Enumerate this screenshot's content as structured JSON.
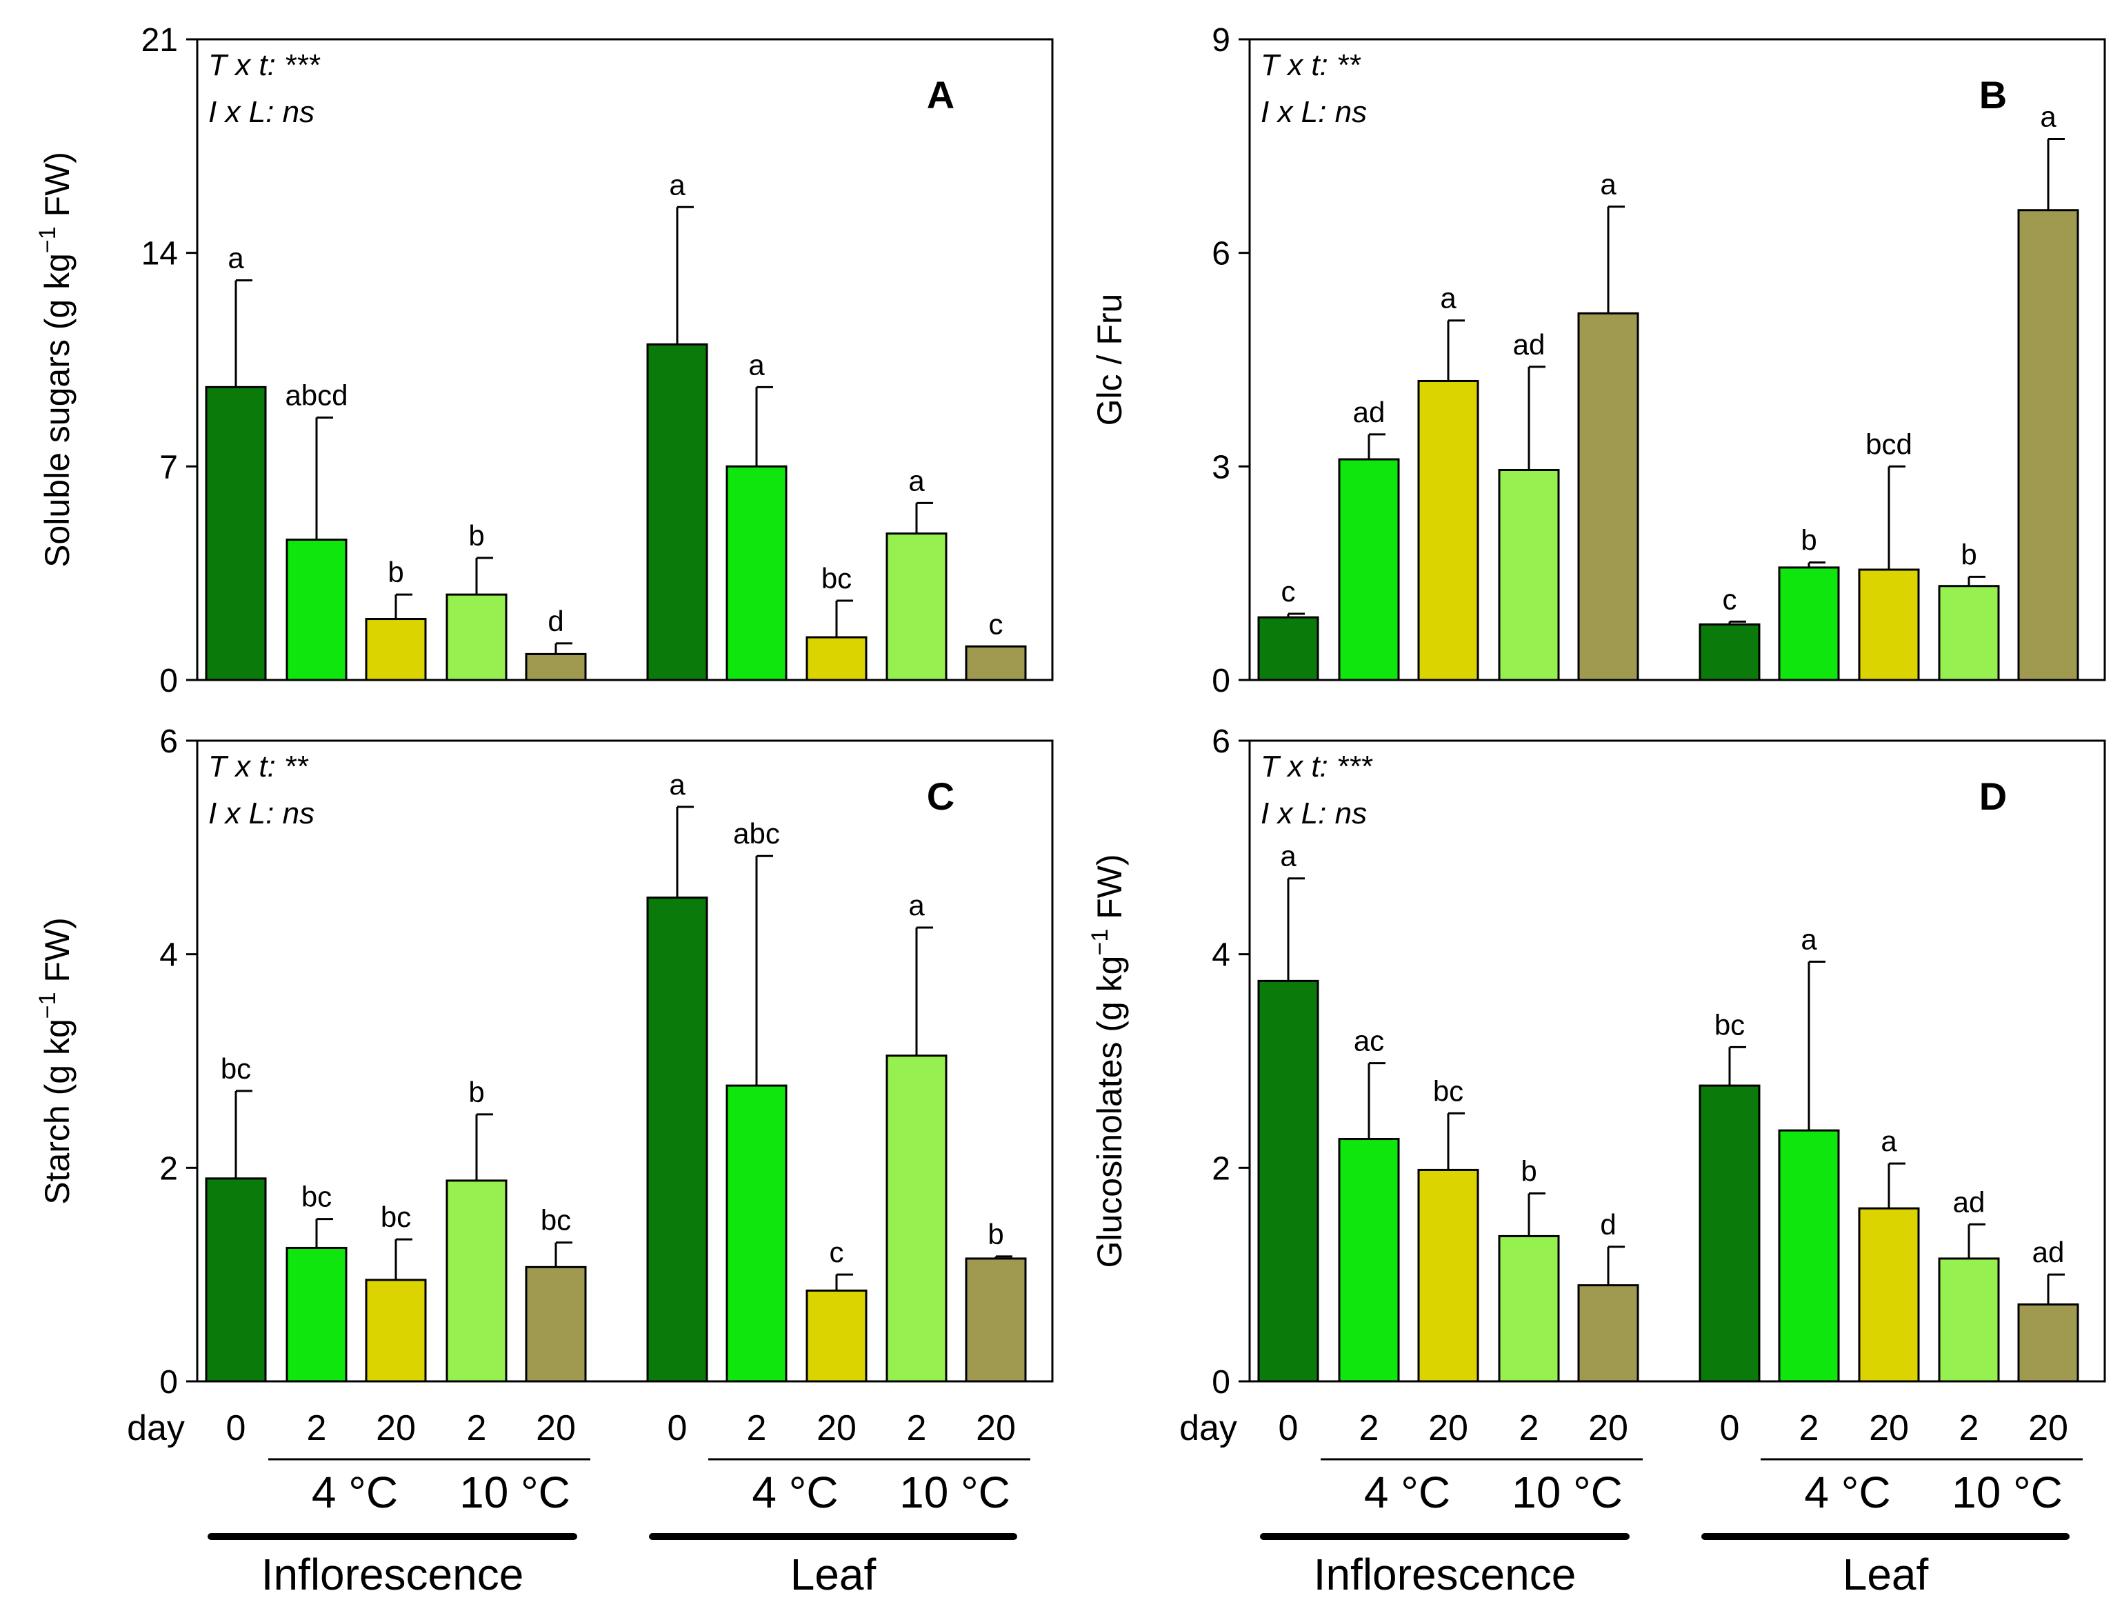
{
  "colors": {
    "day0": "#0a7a0a",
    "t4_day2": "#0ee60e",
    "t4_day20": "#dcd400",
    "t10_day2": "#96f050",
    "t10_day20": "#a09a50",
    "edge": "#000000"
  },
  "shared_x": {
    "day_label": "day",
    "day_labels": [
      "0",
      "2",
      "20",
      "2",
      "20"
    ],
    "temp_labels": [
      "4 °C",
      "10 °C"
    ],
    "group_labels": [
      "Inflorescence",
      "Leaf"
    ]
  },
  "chart_data": [
    {
      "type": "bar",
      "panel": "A",
      "ylabel": "Soluble sugars (g kg",
      "ylabel_sup": "−1",
      "ylabel_tail": " FW)",
      "ylim": [
        0,
        21
      ],
      "yticks": [
        "0",
        "7",
        "14",
        "21"
      ],
      "stats": [
        "T x t: ***",
        "I x L: ns"
      ],
      "groups": [
        "Inflorescence",
        "Leaf"
      ],
      "categories": [
        "0",
        "2 (4 °C)",
        "20 (4 °C)",
        "2 (10 °C)",
        "20 (10 °C)"
      ],
      "series": [
        {
          "name": "Inflorescence",
          "values": [
            9.6,
            4.6,
            2.0,
            2.8,
            0.85
          ],
          "errors": [
            3.5,
            4.0,
            0.8,
            1.2,
            0.35
          ],
          "letters": [
            "a",
            "abcd",
            "b",
            "b",
            "d"
          ]
        },
        {
          "name": "Leaf",
          "values": [
            11.0,
            7.0,
            1.4,
            4.8,
            1.1
          ],
          "errors": [
            4.5,
            2.6,
            1.2,
            1.0,
            0.0
          ],
          "letters": [
            "a",
            "a",
            "bc",
            "a",
            "c"
          ]
        }
      ]
    },
    {
      "type": "bar",
      "panel": "B",
      "ylabel": "Glc / Fru",
      "ylabel_sup": "",
      "ylabel_tail": "",
      "ylim": [
        0,
        9
      ],
      "yticks": [
        "0",
        "3",
        "6",
        "9"
      ],
      "stats": [
        "T x t: **",
        "I x L: ns"
      ],
      "groups": [
        "Inflorescence",
        "Leaf"
      ],
      "categories": [
        "0",
        "2 (4 °C)",
        "20 (4 °C)",
        "2 (10 °C)",
        "20 (10 °C)"
      ],
      "series": [
        {
          "name": "Inflorescence",
          "values": [
            0.88,
            3.1,
            4.2,
            2.95,
            5.15
          ],
          "errors": [
            0.05,
            0.35,
            0.85,
            1.45,
            1.5
          ],
          "letters": [
            "c",
            "ad",
            "a",
            "ad",
            "a"
          ]
        },
        {
          "name": "Leaf",
          "values": [
            0.78,
            1.58,
            1.55,
            1.32,
            6.6
          ],
          "errors": [
            0.04,
            0.07,
            1.45,
            0.13,
            1.0
          ],
          "letters": [
            "c",
            "b",
            "bcd",
            "b",
            "a"
          ]
        }
      ]
    },
    {
      "type": "bar",
      "panel": "C",
      "ylabel": "Starch (g kg",
      "ylabel_sup": "−1",
      "ylabel_tail": " FW)",
      "ylim": [
        0,
        6
      ],
      "yticks": [
        "0",
        "2",
        "4",
        "6"
      ],
      "stats": [
        "T x t: **",
        "I x L: ns"
      ],
      "groups": [
        "Inflorescence",
        "Leaf"
      ],
      "categories": [
        "0",
        "2 (4 °C)",
        "20 (4 °C)",
        "2 (10 °C)",
        "20 (10 °C)"
      ],
      "series": [
        {
          "name": "Inflorescence",
          "values": [
            1.9,
            1.25,
            0.95,
            1.88,
            1.07
          ],
          "errors": [
            0.82,
            0.27,
            0.38,
            0.62,
            0.23
          ],
          "letters": [
            "bc",
            "bc",
            "bc",
            "b",
            "bc"
          ]
        },
        {
          "name": "Leaf",
          "values": [
            4.53,
            2.77,
            0.85,
            3.05,
            1.15
          ],
          "errors": [
            0.85,
            2.15,
            0.15,
            1.2,
            0.02
          ],
          "letters": [
            "a",
            "abc",
            "c",
            "a",
            "b"
          ]
        }
      ]
    },
    {
      "type": "bar",
      "panel": "D",
      "ylabel": "Glucosinolates (g kg",
      "ylabel_sup": "−1",
      "ylabel_tail": " FW)",
      "ylim": [
        0,
        6
      ],
      "yticks": [
        "0",
        "2",
        "4",
        "6"
      ],
      "stats": [
        "T x t: ***",
        "I x L: ns"
      ],
      "groups": [
        "Inflorescence",
        "Leaf"
      ],
      "categories": [
        "0",
        "2 (4 °C)",
        "20 (4 °C)",
        "2 (10 °C)",
        "20 (10 °C)"
      ],
      "series": [
        {
          "name": "Inflorescence",
          "values": [
            3.75,
            2.27,
            1.98,
            1.36,
            0.9
          ],
          "errors": [
            0.96,
            0.71,
            0.53,
            0.4,
            0.36
          ],
          "letters": [
            "a",
            "ac",
            "bc",
            "b",
            "d"
          ]
        },
        {
          "name": "Leaf",
          "values": [
            2.77,
            2.35,
            1.62,
            1.15,
            0.72
          ],
          "errors": [
            0.36,
            1.58,
            0.42,
            0.32,
            0.28
          ],
          "letters": [
            "bc",
            "a",
            "a",
            "ad",
            "ad"
          ]
        }
      ]
    }
  ]
}
